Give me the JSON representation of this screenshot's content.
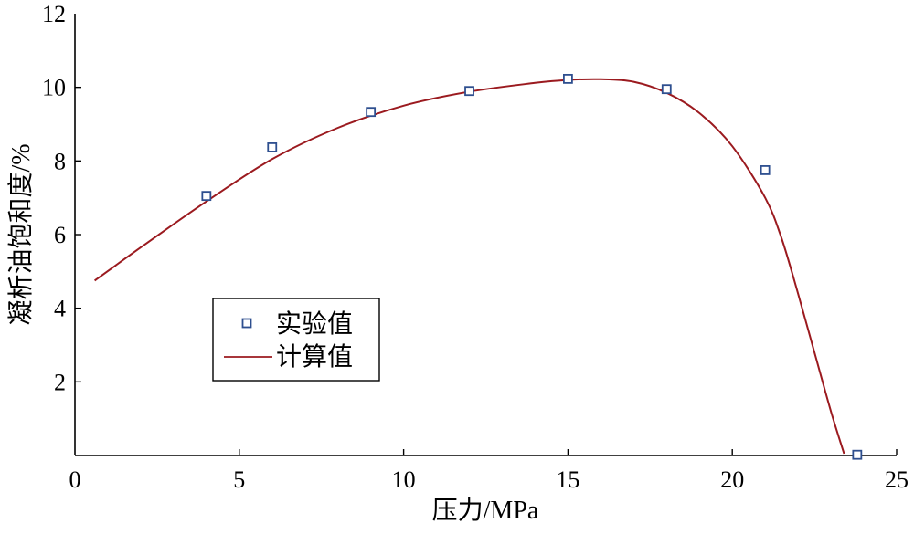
{
  "chart_data": {
    "type": "line",
    "xlabel": "压力/MPa",
    "ylabel": "凝析油饱和度/%",
    "xlim": [
      0,
      25
    ],
    "ylim": [
      0,
      12
    ],
    "x_ticks": [
      0,
      5,
      10,
      15,
      20,
      25
    ],
    "x_tick_labels": [
      "0",
      "5",
      "10",
      "15",
      "20",
      "25"
    ],
    "y_ticks": [
      2,
      4,
      6,
      8,
      10,
      12
    ],
    "y_tick_labels": [
      "2",
      "4",
      "6",
      "8",
      "10",
      "12"
    ],
    "grid": false,
    "legend_position": "center-left",
    "series": [
      {
        "name": "实验值",
        "kind": "scatter",
        "marker": "hollow-square",
        "color": "#2e4f8f",
        "x": [
          4,
          6,
          9,
          12,
          15,
          18,
          21,
          23.8
        ],
        "y": [
          7.05,
          8.37,
          9.33,
          9.9,
          10.23,
          9.95,
          7.75,
          0.02
        ]
      },
      {
        "name": "计算值",
        "kind": "line",
        "color": "#9b1a1f",
        "x": [
          0.6,
          2,
          4,
          6,
          8,
          10,
          12,
          14,
          15,
          16,
          17,
          18,
          19,
          20,
          21,
          21.5,
          22,
          22.5,
          23,
          23.4
        ],
        "y": [
          4.75,
          5.65,
          6.9,
          8.05,
          8.9,
          9.5,
          9.88,
          10.12,
          10.2,
          10.22,
          10.15,
          9.85,
          9.3,
          8.4,
          7.0,
          5.9,
          4.4,
          2.8,
          1.2,
          0.05
        ]
      }
    ]
  }
}
